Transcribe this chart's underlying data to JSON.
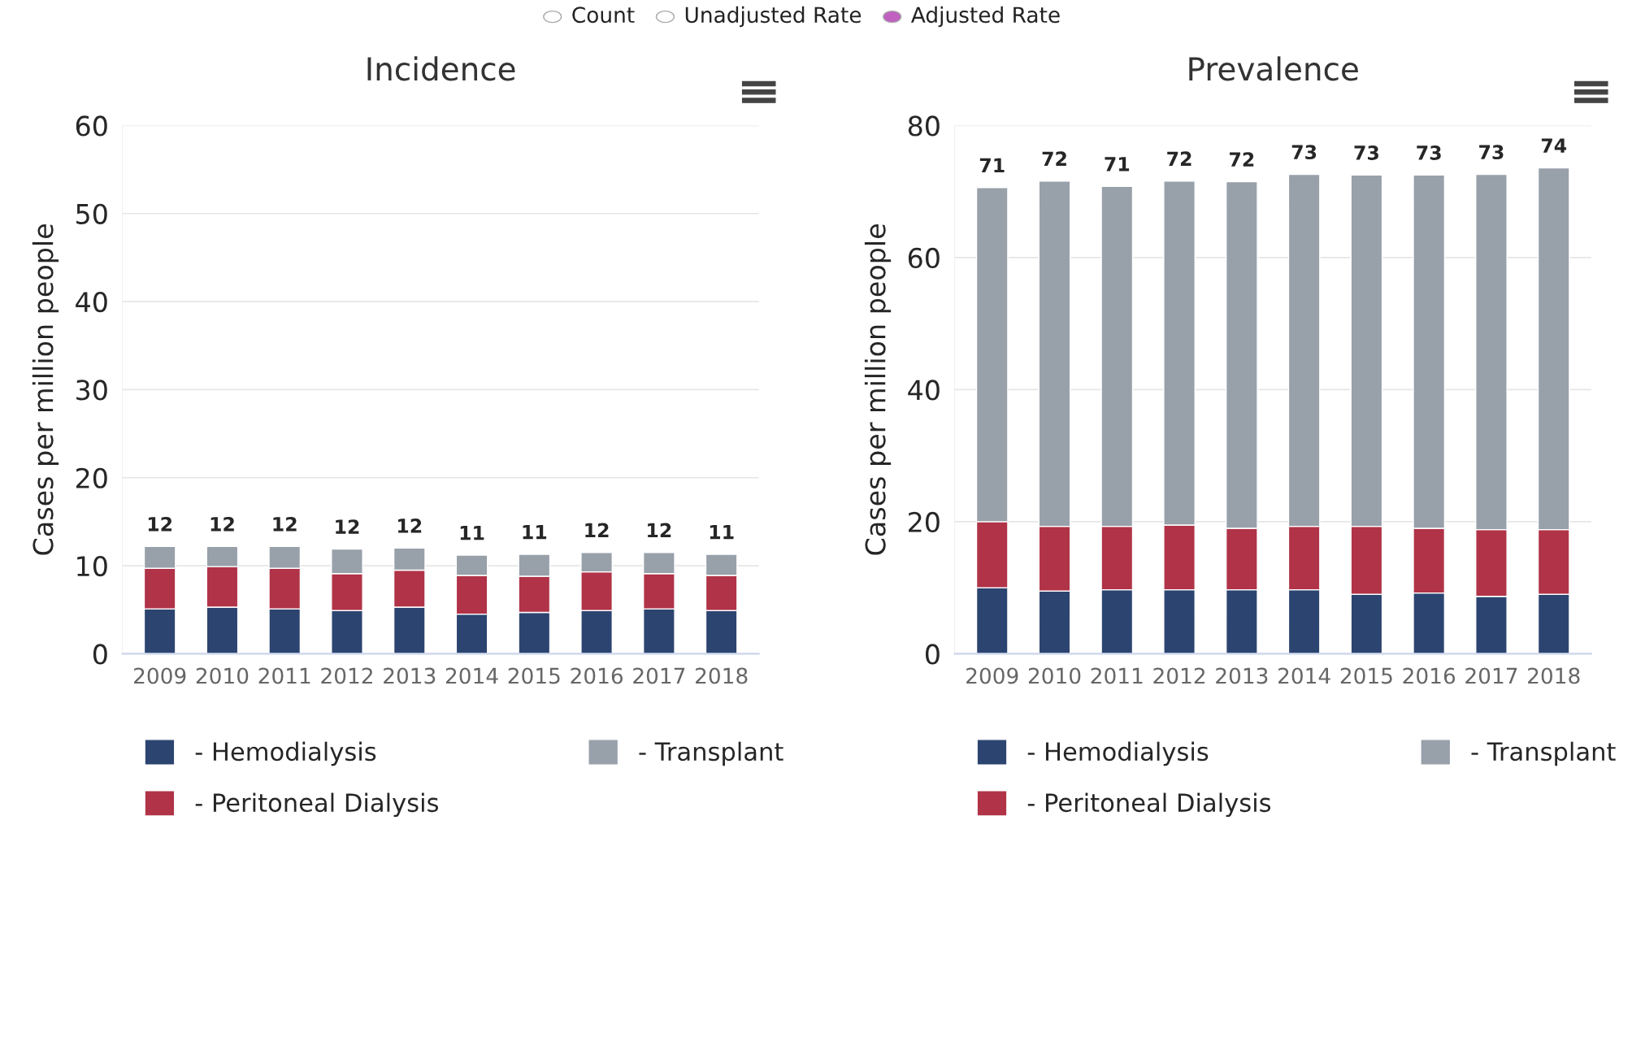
{
  "chart_data": [
    {
      "type": "bar",
      "title": "Incidence",
      "ylabel": "Cases per million people",
      "stacked": true,
      "ylim": [
        0,
        60
      ],
      "yticks": [
        0,
        10,
        20,
        30,
        40,
        50,
        60
      ],
      "grid": "y",
      "legend": "bottom",
      "annotations": [
        "Count",
        "Unadjusted Rate",
        "Adjusted Rate"
      ],
      "categories": [
        "2009",
        "2010",
        "2011",
        "2012",
        "2013",
        "2014",
        "2015",
        "2016",
        "2017",
        "2018"
      ],
      "series": [
        {
          "name": "- Hemodialysis",
          "color": "#2c4470",
          "values": [
            5.1,
            5.3,
            5.1,
            4.9,
            5.3,
            4.5,
            4.7,
            4.9,
            5.1,
            4.9
          ]
        },
        {
          "name": "- Peritoneal Dialysis",
          "color": "#b03348",
          "values": [
            4.6,
            4.6,
            4.6,
            4.2,
            4.2,
            4.4,
            4.1,
            4.4,
            4.0,
            4.0
          ]
        },
        {
          "name": "- Transplant",
          "color": "#98a0aa",
          "values": [
            2.5,
            2.3,
            2.5,
            2.8,
            2.5,
            2.3,
            2.5,
            2.2,
            2.4,
            2.4
          ]
        }
      ],
      "totals": [
        "12",
        "12",
        "12",
        "12",
        "12",
        "11",
        "11",
        "12",
        "12",
        "11"
      ]
    },
    {
      "type": "bar",
      "title": "Prevalence",
      "ylabel": "Cases per million people",
      "stacked": true,
      "ylim": [
        0,
        80
      ],
      "yticks": [
        0,
        20,
        40,
        60,
        80
      ],
      "grid": "y",
      "legend": "bottom",
      "categories": [
        "2009",
        "2010",
        "2011",
        "2012",
        "2013",
        "2014",
        "2015",
        "2016",
        "2017",
        "2018"
      ],
      "series": [
        {
          "name": "- Hemodialysis",
          "color": "#2c4470",
          "values": [
            10.0,
            9.5,
            9.7,
            9.7,
            9.7,
            9.7,
            9.0,
            9.2,
            8.7,
            9.0
          ]
        },
        {
          "name": "- Peritoneal Dialysis",
          "color": "#b03348",
          "values": [
            10.0,
            9.8,
            9.6,
            9.8,
            9.3,
            9.6,
            10.3,
            9.8,
            10.1,
            9.8
          ]
        },
        {
          "name": "- Transplant",
          "color": "#98a0aa",
          "values": [
            50.6,
            52.3,
            51.5,
            52.1,
            52.5,
            53.3,
            53.2,
            53.5,
            53.8,
            54.8
          ]
        }
      ],
      "totals": [
        "71",
        "72",
        "71",
        "72",
        "72",
        "73",
        "73",
        "73",
        "73",
        "74"
      ]
    }
  ]
}
